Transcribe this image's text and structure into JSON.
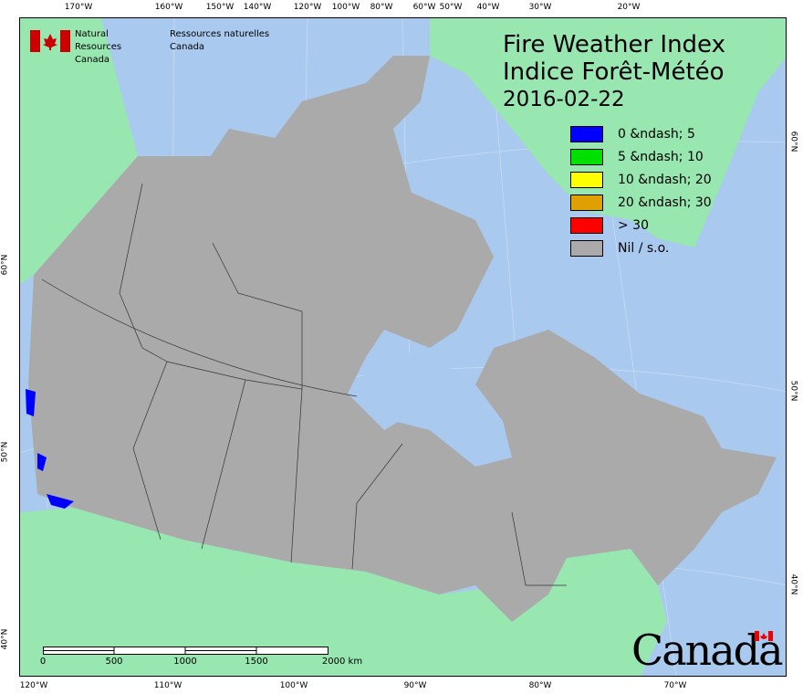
{
  "header": {
    "agency_en": "Natural Resources",
    "agency_en2": "Canada",
    "agency_fr": "Ressources naturelles",
    "agency_fr2": "Canada",
    "title_en": "Fire Weather Index",
    "title_fr": "Indice Forêt-Météo",
    "date": "2016-02-22"
  },
  "legend": [
    {
      "label": "0 &ndash; 5",
      "color": "#0000ff"
    },
    {
      "label": "5 &ndash; 10",
      "color": "#00e000"
    },
    {
      "label": "10 &ndash; 20",
      "color": "#ffff00"
    },
    {
      "label": "20 &ndash; 30",
      "color": "#e0a000"
    },
    {
      "label": "> 30",
      "color": "#ff0000"
    },
    {
      "label": "Nil / s.o.",
      "color": "#aaaaaa"
    }
  ],
  "ticks": {
    "top": [
      "170°W",
      "160°W",
      "150°W",
      "140°W",
      "120°W",
      "100°W",
      "80°W",
      "60°W",
      "50°W",
      "40°W",
      "30°W",
      "20°W"
    ],
    "bottom": [
      "120°W",
      "110°W",
      "100°W",
      "90°W",
      "80°W",
      "70°W"
    ],
    "left": [
      "60°N",
      "50°N",
      "40°N"
    ],
    "right": [
      "60°N",
      "50°N",
      "40°N"
    ]
  },
  "scale": {
    "labels": [
      "0",
      "500",
      "1000",
      "1500",
      "2000  km"
    ]
  },
  "wordmark": "Canada",
  "colors": {
    "water": "#a9c9ef",
    "land_other": "#98e6b0",
    "canada_nil": "#aaaaaa",
    "fwi_low": "#0000ff"
  }
}
